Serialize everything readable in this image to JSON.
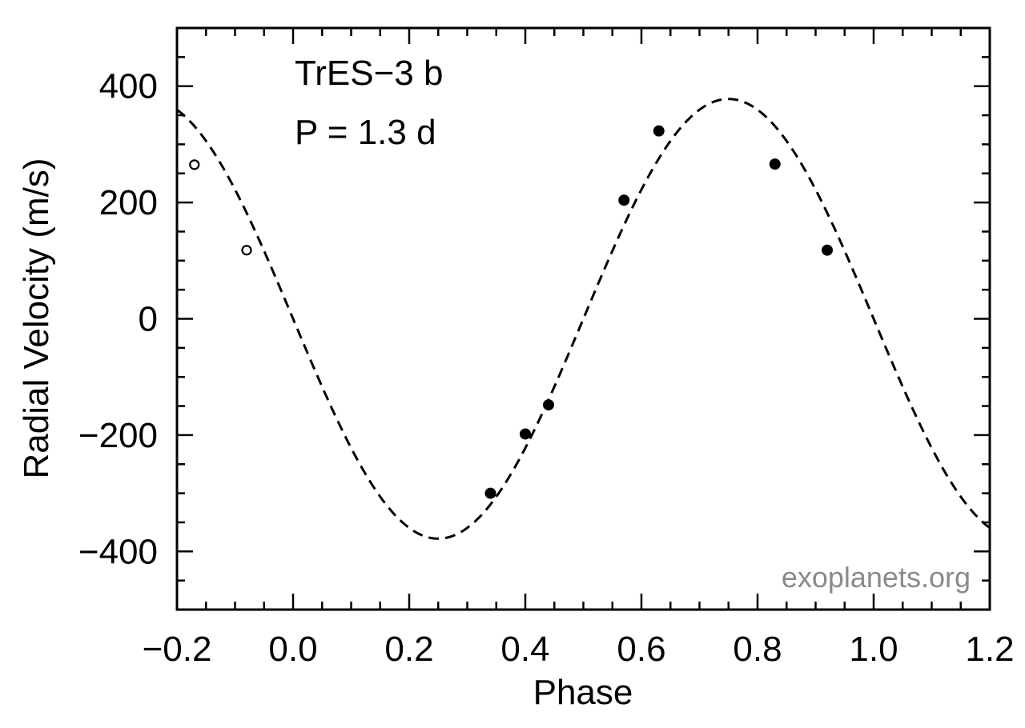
{
  "chart_data": {
    "type": "scatter",
    "xlabel": "Phase",
    "ylabel": "Radial Velocity  (m/s)",
    "xlim": [
      -0.2,
      1.2
    ],
    "ylim": [
      -500,
      500
    ],
    "xticks": [
      -0.2,
      0.0,
      0.2,
      0.4,
      0.6,
      0.8,
      1.0,
      1.2
    ],
    "xtick_labels": [
      "−0.2",
      "0.0",
      "0.2",
      "0.4",
      "0.6",
      "0.8",
      "1.0",
      "1.2"
    ],
    "yticks": [
      -400,
      -200,
      0,
      200,
      400
    ],
    "ytick_labels": [
      "−400",
      "−200",
      "0",
      "200",
      "400"
    ],
    "annotations": [
      "TrES−3 b",
      "P = 1.3 d"
    ],
    "watermark": "exoplanets.org",
    "model_curve": {
      "style": "dashed",
      "amplitude": 378,
      "phase_of_minimum": 0.25,
      "phase_of_maximum": 0.75
    },
    "series": [
      {
        "marker": "filled-circle",
        "points": [
          {
            "x": 0.34,
            "y": -300
          },
          {
            "x": 0.4,
            "y": -198
          },
          {
            "x": 0.44,
            "y": -148
          },
          {
            "x": 0.57,
            "y": 204
          },
          {
            "x": 0.63,
            "y": 323
          },
          {
            "x": 0.83,
            "y": 266
          },
          {
            "x": 0.92,
            "y": 118
          }
        ]
      },
      {
        "marker": "open-circle",
        "points": [
          {
            "x": -0.17,
            "y": 265
          },
          {
            "x": -0.08,
            "y": 118
          }
        ]
      }
    ],
    "colors": {
      "axis": "#000000",
      "points": "#000000",
      "watermark": "#8a8a8a"
    }
  }
}
